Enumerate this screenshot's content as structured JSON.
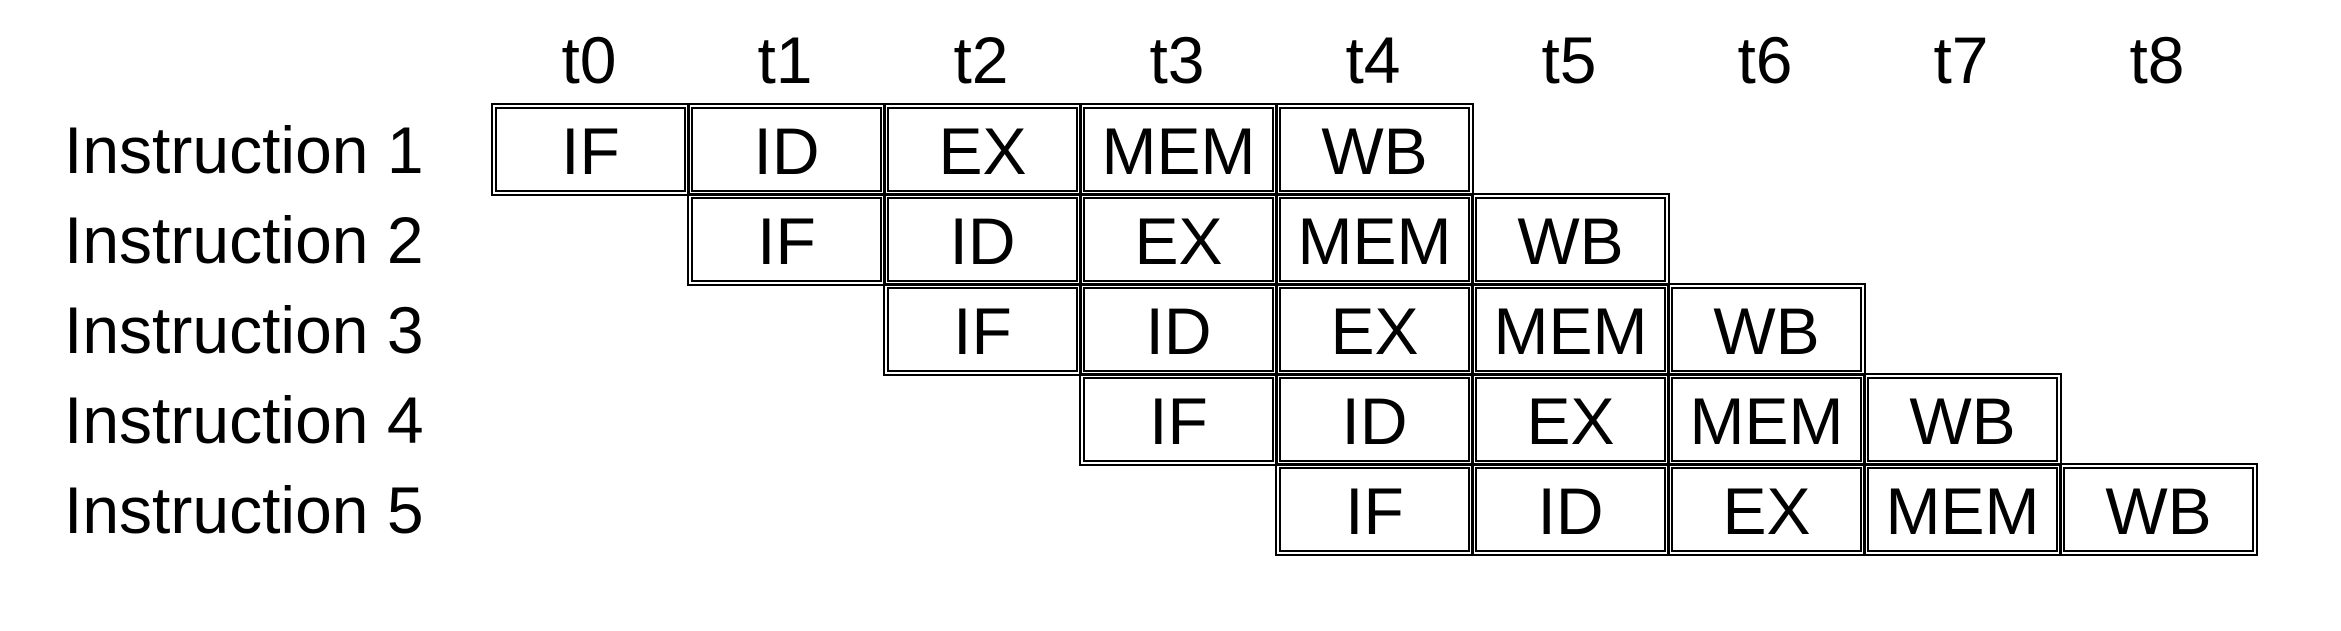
{
  "diagram": {
    "type": "pipeline-diagram",
    "time_steps": [
      "t0",
      "t1",
      "t2",
      "t3",
      "t4",
      "t5",
      "t6",
      "t7",
      "t8"
    ],
    "instructions": [
      {
        "label": "Instruction 1",
        "start": 0,
        "stages": [
          "IF",
          "ID",
          "EX",
          "MEM",
          "WB"
        ]
      },
      {
        "label": "Instruction 2",
        "start": 1,
        "stages": [
          "IF",
          "ID",
          "EX",
          "MEM",
          "WB"
        ]
      },
      {
        "label": "Instruction 3",
        "start": 2,
        "stages": [
          "IF",
          "ID",
          "EX",
          "MEM",
          "WB"
        ]
      },
      {
        "label": "Instruction 4",
        "start": 3,
        "stages": [
          "IF",
          "ID",
          "EX",
          "MEM",
          "WB"
        ]
      },
      {
        "label": "Instruction 5",
        "start": 4,
        "stages": [
          "IF",
          "ID",
          "EX",
          "MEM",
          "WB"
        ]
      }
    ],
    "colors": {
      "background": "#ffffff",
      "line": "#000000",
      "text": "#000000"
    }
  }
}
